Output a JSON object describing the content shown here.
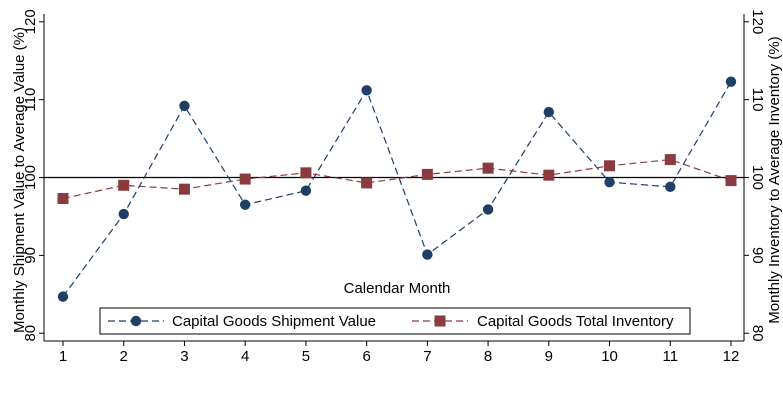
{
  "chart_data": {
    "type": "line",
    "xlabel": "Calendar Month",
    "ylabel_left": "Monthly  Shipment Value to Average Value (%)",
    "ylabel_right": "Monthly  Inventory to Average  Inventory (%)",
    "x": [
      1,
      2,
      3,
      4,
      5,
      6,
      7,
      8,
      9,
      10,
      11,
      12
    ],
    "x_ticks": [
      "1",
      "2",
      "3",
      "4",
      "5",
      "6",
      "7",
      "8",
      "9",
      "10",
      "11",
      "12"
    ],
    "ylim": [
      79,
      121
    ],
    "y_ticks": [
      "80",
      "90",
      "100",
      "110",
      "120"
    ],
    "y_tick_values": [
      80,
      90,
      100,
      110,
      120
    ],
    "reference_line": 100,
    "grid": false,
    "legend_position": "bottom",
    "series": [
      {
        "name": "Capital Goods Shipment Value",
        "color": "#1f3f66",
        "marker": "circle",
        "line_style": "dashed",
        "values": [
          84.7,
          95.3,
          109.2,
          96.5,
          98.3,
          111.2,
          90.1,
          95.9,
          108.4,
          99.4,
          98.8,
          112.3
        ]
      },
      {
        "name": "Capital Goods Total Inventory",
        "color": "#8b3a3f",
        "marker": "square",
        "line_style": "dashed",
        "values": [
          97.3,
          99.0,
          98.5,
          99.8,
          100.6,
          99.3,
          100.4,
          101.2,
          100.3,
          101.5,
          102.3,
          99.6
        ]
      }
    ]
  }
}
